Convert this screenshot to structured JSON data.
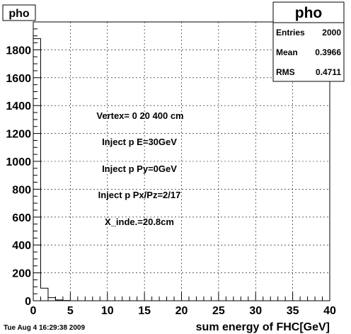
{
  "chart_data": {
    "type": "bar",
    "title": "pho",
    "xlabel": "sum energy of FHC[GeV]",
    "ylabel": "",
    "xlim": [
      0,
      40
    ],
    "ylim": [
      0,
      2000
    ],
    "bin_width": 1,
    "bins_x": [
      0,
      1,
      2,
      3,
      4
    ],
    "values": [
      1880,
      90,
      22,
      6,
      2
    ],
    "x_ticks": [
      "0",
      "5",
      "10",
      "15",
      "20",
      "25",
      "30",
      "35",
      "40"
    ],
    "y_ticks": [
      "0",
      "200",
      "400",
      "600",
      "800",
      "1000",
      "1200",
      "1400",
      "1600",
      "1800"
    ],
    "grid": true,
    "annotations": [
      "Vertex= 0 20 400 cm",
      "Inject p E=30GeV",
      "Inject p Py=0GeV",
      "Inject p Px/Pz=2/17",
      "X_inde.=20.8cm"
    ],
    "stats_box": {
      "title": "pho",
      "rows": [
        {
          "label": "Entries",
          "value": "2000"
        },
        {
          "label": "Mean",
          "value": "0.3966"
        },
        {
          "label": "RMS",
          "value": "0.4711"
        }
      ]
    },
    "timestamp": "Tue Aug  4 16:29:38 2009"
  }
}
